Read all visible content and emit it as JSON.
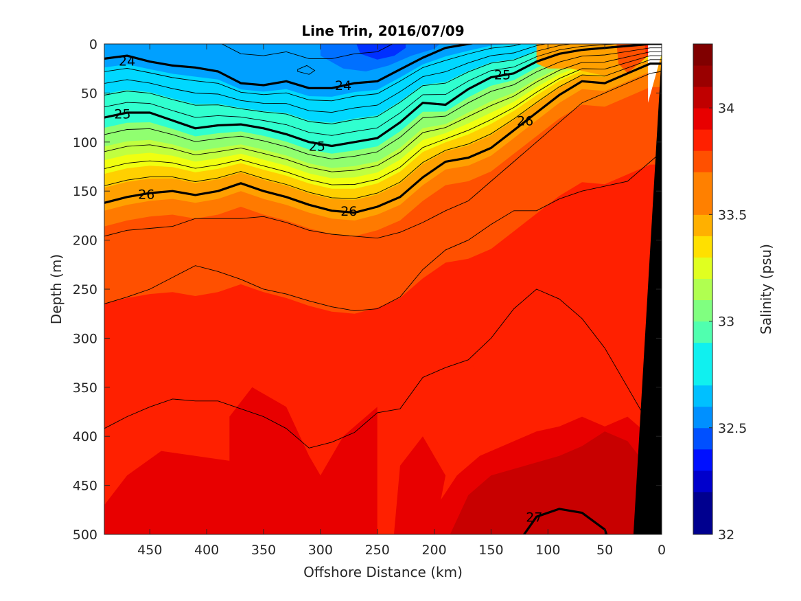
{
  "chart_data": {
    "type": "heatmap",
    "subtype": "filled-contour section",
    "title": "Line Trin, 2016/07/09",
    "xlabel": "Offshore Distance (km)",
    "ylabel": "Depth (m)",
    "colorbar_label": "Salinity (psu)",
    "x_reversed": true,
    "y_reversed": true,
    "xlim": [
      490,
      0
    ],
    "ylim": [
      0,
      500
    ],
    "x_ticks": [
      "450",
      "400",
      "350",
      "300",
      "250",
      "200",
      "150",
      "100",
      "50",
      "0"
    ],
    "y_ticks": [
      "0",
      "50",
      "100",
      "150",
      "200",
      "250",
      "300",
      "350",
      "400",
      "450",
      "500"
    ],
    "colorbar": {
      "range": [
        32,
        34.3
      ],
      "step": 0.1,
      "ticks": [
        "32",
        "32.5",
        "33",
        "33.5",
        "34"
      ],
      "colors": [
        "#00008F",
        "#0000CC",
        "#0010FF",
        "#0050FF",
        "#0090FF",
        "#00C0FF",
        "#10F0EF",
        "#50FFAF",
        "#80FF80",
        "#B0FF50",
        "#E0FF20",
        "#FFE000",
        "#FFB000",
        "#FF8000",
        "#FF5000",
        "#FF2000",
        "#E80000",
        "#C00000",
        "#9A0000",
        "#800000"
      ]
    },
    "grid": false,
    "salinity_field": {
      "layers": [
        {
          "value": 33.95,
          "color": "#FF2000"
        },
        {
          "value": 34.05,
          "color": "#E80000"
        },
        {
          "value": 34.15,
          "color": "#C80000"
        },
        {
          "value": 33.85,
          "color": "#FF5000"
        },
        {
          "value": 33.75,
          "color": "#FF7A00"
        },
        {
          "value": 33.65,
          "color": "#FFA000"
        },
        {
          "value": 33.55,
          "color": "#FFD000"
        },
        {
          "value": 33.45,
          "color": "#F0FF10"
        },
        {
          "value": 33.35,
          "color": "#C0FF40"
        },
        {
          "value": 33.25,
          "color": "#90FF70"
        },
        {
          "value": 33.05,
          "color": "#30FFCF"
        },
        {
          "value": 32.85,
          "color": "#00D8FF"
        },
        {
          "value": 32.65,
          "color": "#00A0FF"
        },
        {
          "value": 32.45,
          "color": "#0070FF"
        },
        {
          "value": 32.25,
          "color": "#0030FF"
        }
      ],
      "bottom_topography_color": "#000000"
    },
    "density_contours": {
      "major_levels": [
        24,
        25,
        26,
        27
      ],
      "labels": [
        {
          "text": "24",
          "x": 470,
          "y": 17
        },
        {
          "text": "24",
          "x": 280,
          "y": 42
        },
        {
          "text": "25",
          "x": 140,
          "y": 31
        },
        {
          "text": "25",
          "x": 474,
          "y": 71
        },
        {
          "text": "25",
          "x": 303,
          "y": 104
        },
        {
          "text": "26",
          "x": 120,
          "y": 78
        },
        {
          "text": "26",
          "x": 453,
          "y": 153
        },
        {
          "text": "26",
          "x": 275,
          "y": 170
        },
        {
          "text": "27",
          "x": 112,
          "y": 482
        }
      ]
    }
  }
}
